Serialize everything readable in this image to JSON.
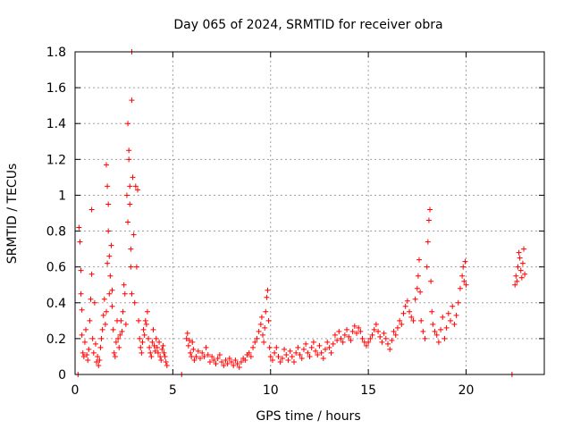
{
  "chart_data": {
    "type": "scatter",
    "title": "Day 065 of 2024, SRMTID for receiver obra",
    "xlabel": "GPS time / hours",
    "ylabel": "SRMTID / TECUs",
    "xlim": [
      0,
      24
    ],
    "ylim": [
      0,
      1.8
    ],
    "grid": true,
    "marker": "+",
    "color": "#ff0000",
    "x_ticks": [
      0,
      5,
      10,
      15,
      20
    ],
    "x_tick_labels": [
      "0",
      "5",
      "10",
      "15",
      "20"
    ],
    "y_ticks": [
      0,
      0.2,
      0.4,
      0.6,
      0.8,
      1.0,
      1.2,
      1.4,
      1.6,
      1.8
    ],
    "y_tick_labels": [
      "0",
      "0.2",
      "0.4",
      "0.6",
      "0.8",
      "1",
      "1.2",
      "1.4",
      "1.6",
      "1.8"
    ],
    "series": [
      {
        "name": "SRMTID",
        "points": [
          [
            0.15,
            0.0
          ],
          [
            5.45,
            0.0
          ],
          [
            22.35,
            0.0
          ],
          [
            0.2,
            0.82
          ],
          [
            0.25,
            0.74
          ],
          [
            0.3,
            0.58
          ],
          [
            0.3,
            0.45
          ],
          [
            0.35,
            0.36
          ],
          [
            0.35,
            0.22
          ],
          [
            0.4,
            0.12
          ],
          [
            0.45,
            0.1
          ],
          [
            0.5,
            0.18
          ],
          [
            0.55,
            0.25
          ],
          [
            0.6,
            0.11
          ],
          [
            0.65,
            0.08
          ],
          [
            0.7,
            0.14
          ],
          [
            0.75,
            0.3
          ],
          [
            0.8,
            0.42
          ],
          [
            0.85,
            0.56
          ],
          [
            0.85,
            0.92
          ],
          [
            0.9,
            0.2
          ],
          [
            0.95,
            0.12
          ],
          [
            1.0,
            0.4
          ],
          [
            1.05,
            0.17
          ],
          [
            1.1,
            0.07
          ],
          [
            1.15,
            0.1
          ],
          [
            1.2,
            0.05
          ],
          [
            1.25,
            0.08
          ],
          [
            1.3,
            0.15
          ],
          [
            1.35,
            0.2
          ],
          [
            1.4,
            0.25
          ],
          [
            1.45,
            0.33
          ],
          [
            1.5,
            0.42
          ],
          [
            1.55,
            0.28
          ],
          [
            1.6,
            0.35
          ],
          [
            1.6,
            1.17
          ],
          [
            1.65,
            1.05
          ],
          [
            1.65,
            0.62
          ],
          [
            1.7,
            0.8
          ],
          [
            1.7,
            0.95
          ],
          [
            1.75,
            0.66
          ],
          [
            1.75,
            0.45
          ],
          [
            1.8,
            0.55
          ],
          [
            1.85,
            0.72
          ],
          [
            1.9,
            0.38
          ],
          [
            1.9,
            0.47
          ],
          [
            1.95,
            0.25
          ],
          [
            2.0,
            0.12
          ],
          [
            2.05,
            0.1
          ],
          [
            2.1,
            0.18
          ],
          [
            2.15,
            0.3
          ],
          [
            2.2,
            0.2
          ],
          [
            2.25,
            0.15
          ],
          [
            2.3,
            0.22
          ],
          [
            2.35,
            0.3
          ],
          [
            2.4,
            0.24
          ],
          [
            2.45,
            0.35
          ],
          [
            2.5,
            0.5
          ],
          [
            2.55,
            0.45
          ],
          [
            2.6,
            0.28
          ],
          [
            2.65,
            1.0
          ],
          [
            2.7,
            0.85
          ],
          [
            2.7,
            1.4
          ],
          [
            2.75,
            1.25
          ],
          [
            2.75,
            1.2
          ],
          [
            2.8,
            1.05
          ],
          [
            2.8,
            0.95
          ],
          [
            2.85,
            0.7
          ],
          [
            2.85,
            0.6
          ],
          [
            2.9,
            0.45
          ],
          [
            2.9,
            1.53
          ],
          [
            2.9,
            1.8
          ],
          [
            2.95,
            1.1
          ],
          [
            3.0,
            0.78
          ],
          [
            3.05,
            0.4
          ],
          [
            3.1,
            1.05
          ],
          [
            3.15,
            0.6
          ],
          [
            3.2,
            1.03
          ],
          [
            3.25,
            0.3
          ],
          [
            3.3,
            0.2
          ],
          [
            3.35,
            0.15
          ],
          [
            3.4,
            0.12
          ],
          [
            3.45,
            0.18
          ],
          [
            3.5,
            0.25
          ],
          [
            3.55,
            0.22
          ],
          [
            3.6,
            0.3
          ],
          [
            3.65,
            0.28
          ],
          [
            3.7,
            0.35
          ],
          [
            3.75,
            0.2
          ],
          [
            3.8,
            0.15
          ],
          [
            3.85,
            0.12
          ],
          [
            3.9,
            0.1
          ],
          [
            3.95,
            0.18
          ],
          [
            4.0,
            0.25
          ],
          [
            4.05,
            0.16
          ],
          [
            4.1,
            0.13
          ],
          [
            4.15,
            0.2
          ],
          [
            4.2,
            0.15
          ],
          [
            4.25,
            0.12
          ],
          [
            4.3,
            0.18
          ],
          [
            4.35,
            0.1
          ],
          [
            4.4,
            0.08
          ],
          [
            4.45,
            0.14
          ],
          [
            4.5,
            0.16
          ],
          [
            4.55,
            0.12
          ],
          [
            4.6,
            0.1
          ],
          [
            4.65,
            0.07
          ],
          [
            4.7,
            0.05
          ],
          [
            5.7,
            0.2
          ],
          [
            5.75,
            0.23
          ],
          [
            5.8,
            0.16
          ],
          [
            5.85,
            0.19
          ],
          [
            5.9,
            0.12
          ],
          [
            5.95,
            0.1
          ],
          [
            6.0,
            0.18
          ],
          [
            6.05,
            0.14
          ],
          [
            6.1,
            0.08
          ],
          [
            6.2,
            0.1
          ],
          [
            6.3,
            0.13
          ],
          [
            6.4,
            0.09
          ],
          [
            6.5,
            0.12
          ],
          [
            6.6,
            0.1
          ],
          [
            6.7,
            0.15
          ],
          [
            6.8,
            0.11
          ],
          [
            6.9,
            0.07
          ],
          [
            7.0,
            0.1
          ],
          [
            7.1,
            0.08
          ],
          [
            7.2,
            0.06
          ],
          [
            7.3,
            0.09
          ],
          [
            7.4,
            0.11
          ],
          [
            7.5,
            0.07
          ],
          [
            7.6,
            0.05
          ],
          [
            7.7,
            0.08
          ],
          [
            7.8,
            0.06
          ],
          [
            7.9,
            0.09
          ],
          [
            8.0,
            0.07
          ],
          [
            8.1,
            0.05
          ],
          [
            8.2,
            0.08
          ],
          [
            8.3,
            0.06
          ],
          [
            8.4,
            0.04
          ],
          [
            8.5,
            0.07
          ],
          [
            8.6,
            0.09
          ],
          [
            8.7,
            0.08
          ],
          [
            8.8,
            0.11
          ],
          [
            8.9,
            0.12
          ],
          [
            9.0,
            0.1
          ],
          [
            9.1,
            0.15
          ],
          [
            9.2,
            0.18
          ],
          [
            9.3,
            0.2
          ],
          [
            9.4,
            0.24
          ],
          [
            9.5,
            0.28
          ],
          [
            9.55,
            0.32
          ],
          [
            9.6,
            0.22
          ],
          [
            9.65,
            0.18
          ],
          [
            9.7,
            0.26
          ],
          [
            9.75,
            0.35
          ],
          [
            9.8,
            0.43
          ],
          [
            9.85,
            0.47
          ],
          [
            9.9,
            0.3
          ],
          [
            9.95,
            0.15
          ],
          [
            10.0,
            0.1
          ],
          [
            10.1,
            0.08
          ],
          [
            10.2,
            0.12
          ],
          [
            10.3,
            0.15
          ],
          [
            10.4,
            0.1
          ],
          [
            10.5,
            0.07
          ],
          [
            10.6,
            0.09
          ],
          [
            10.7,
            0.14
          ],
          [
            10.8,
            0.11
          ],
          [
            10.9,
            0.08
          ],
          [
            11.0,
            0.13
          ],
          [
            11.1,
            0.1
          ],
          [
            11.2,
            0.07
          ],
          [
            11.3,
            0.12
          ],
          [
            11.4,
            0.15
          ],
          [
            11.5,
            0.11
          ],
          [
            11.6,
            0.09
          ],
          [
            11.7,
            0.14
          ],
          [
            11.8,
            0.17
          ],
          [
            11.9,
            0.12
          ],
          [
            12.0,
            0.1
          ],
          [
            12.1,
            0.15
          ],
          [
            12.2,
            0.18
          ],
          [
            12.3,
            0.13
          ],
          [
            12.4,
            0.11
          ],
          [
            12.5,
            0.16
          ],
          [
            12.6,
            0.12
          ],
          [
            12.7,
            0.09
          ],
          [
            12.8,
            0.14
          ],
          [
            12.9,
            0.18
          ],
          [
            13.0,
            0.15
          ],
          [
            13.1,
            0.12
          ],
          [
            13.2,
            0.17
          ],
          [
            13.3,
            0.22
          ],
          [
            13.4,
            0.19
          ],
          [
            13.5,
            0.24
          ],
          [
            13.6,
            0.2
          ],
          [
            13.7,
            0.18
          ],
          [
            13.8,
            0.22
          ],
          [
            13.9,
            0.25
          ],
          [
            14.0,
            0.21
          ],
          [
            14.1,
            0.19
          ],
          [
            14.2,
            0.24
          ],
          [
            14.3,
            0.27
          ],
          [
            14.4,
            0.23
          ],
          [
            14.5,
            0.26
          ],
          [
            14.6,
            0.24
          ],
          [
            14.7,
            0.2
          ],
          [
            14.8,
            0.18
          ],
          [
            14.9,
            0.16
          ],
          [
            15.0,
            0.18
          ],
          [
            15.1,
            0.2
          ],
          [
            15.2,
            0.22
          ],
          [
            15.3,
            0.25
          ],
          [
            15.4,
            0.28
          ],
          [
            15.5,
            0.24
          ],
          [
            15.6,
            0.21
          ],
          [
            15.7,
            0.18
          ],
          [
            15.8,
            0.23
          ],
          [
            15.9,
            0.2
          ],
          [
            16.0,
            0.17
          ],
          [
            16.1,
            0.14
          ],
          [
            16.2,
            0.19
          ],
          [
            16.3,
            0.24
          ],
          [
            16.4,
            0.22
          ],
          [
            16.5,
            0.26
          ],
          [
            16.6,
            0.3
          ],
          [
            16.7,
            0.28
          ],
          [
            16.8,
            0.34
          ],
          [
            16.9,
            0.38
          ],
          [
            17.0,
            0.41
          ],
          [
            17.1,
            0.35
          ],
          [
            17.2,
            0.32
          ],
          [
            17.3,
            0.3
          ],
          [
            17.4,
            0.42
          ],
          [
            17.5,
            0.48
          ],
          [
            17.55,
            0.55
          ],
          [
            17.6,
            0.64
          ],
          [
            17.65,
            0.46
          ],
          [
            17.7,
            0.3
          ],
          [
            17.8,
            0.24
          ],
          [
            17.9,
            0.2
          ],
          [
            18.0,
            0.6
          ],
          [
            18.05,
            0.74
          ],
          [
            18.1,
            0.86
          ],
          [
            18.15,
            0.92
          ],
          [
            18.2,
            0.52
          ],
          [
            18.25,
            0.35
          ],
          [
            18.3,
            0.28
          ],
          [
            18.4,
            0.24
          ],
          [
            18.5,
            0.22
          ],
          [
            18.6,
            0.18
          ],
          [
            18.7,
            0.25
          ],
          [
            18.8,
            0.32
          ],
          [
            18.9,
            0.2
          ],
          [
            19.0,
            0.26
          ],
          [
            19.1,
            0.34
          ],
          [
            19.2,
            0.3
          ],
          [
            19.3,
            0.38
          ],
          [
            19.4,
            0.28
          ],
          [
            19.5,
            0.33
          ],
          [
            19.6,
            0.4
          ],
          [
            19.7,
            0.48
          ],
          [
            19.8,
            0.55
          ],
          [
            19.85,
            0.6
          ],
          [
            19.9,
            0.52
          ],
          [
            19.95,
            0.63
          ],
          [
            20.0,
            0.5
          ],
          [
            22.5,
            0.5
          ],
          [
            22.55,
            0.55
          ],
          [
            22.6,
            0.52
          ],
          [
            22.65,
            0.6
          ],
          [
            22.7,
            0.68
          ],
          [
            22.75,
            0.65
          ],
          [
            22.8,
            0.58
          ],
          [
            22.85,
            0.54
          ],
          [
            22.9,
            0.62
          ],
          [
            22.95,
            0.7
          ],
          [
            23.0,
            0.56
          ]
        ]
      }
    ]
  }
}
